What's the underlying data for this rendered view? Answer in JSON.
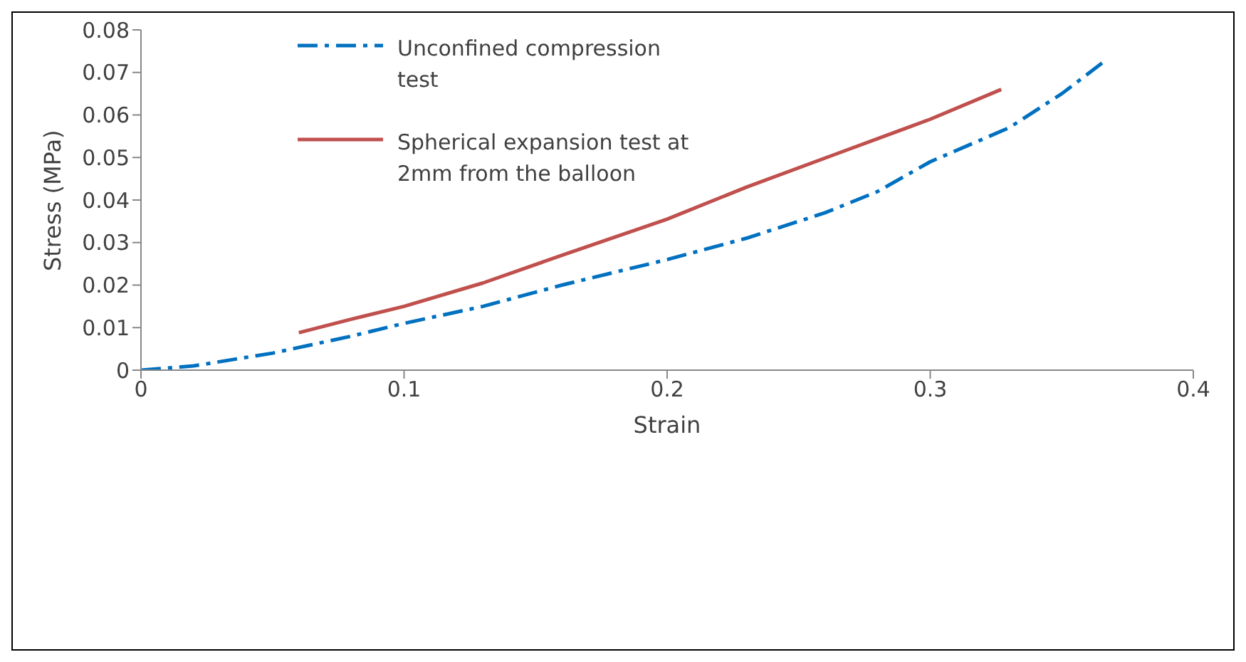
{
  "chart_data": {
    "type": "line",
    "xlabel": "Strain",
    "ylabel": "Stress (MPa)",
    "xlim": [
      0,
      0.4
    ],
    "xticks": [
      0,
      0.1,
      0.2,
      0.3,
      0.4
    ],
    "ylim": [
      0,
      0.08
    ],
    "yticks": [
      0,
      0.01,
      0.02,
      0.03,
      0.04,
      0.05,
      0.06,
      0.07,
      0.08
    ],
    "grid": false,
    "legend": "top left",
    "marker": "none",
    "series": [
      {
        "name": "Unconfined compression test",
        "color": "#0070c0",
        "line_style": "dashed",
        "x": [
          0,
          0.02,
          0.05,
          0.08,
          0.1,
          0.13,
          0.16,
          0.2,
          0.23,
          0.26,
          0.28,
          0.3,
          0.33,
          0.35,
          0.367
        ],
        "values": [
          0,
          0.001,
          0.004,
          0.008,
          0.011,
          0.015,
          0.02,
          0.026,
          0.031,
          0.037,
          0.042,
          0.049,
          0.057,
          0.065,
          0.073
        ]
      },
      {
        "name": "Spherical expansion test at 2mm from the balloon",
        "color": "#c0504d",
        "line_style": "solid",
        "x": [
          0.06,
          0.08,
          0.1,
          0.13,
          0.16,
          0.2,
          0.23,
          0.265,
          0.3,
          0.327
        ],
        "values": [
          0.0088,
          0.012,
          0.015,
          0.0205,
          0.027,
          0.0355,
          0.043,
          0.051,
          0.059,
          0.066
        ]
      }
    ]
  }
}
